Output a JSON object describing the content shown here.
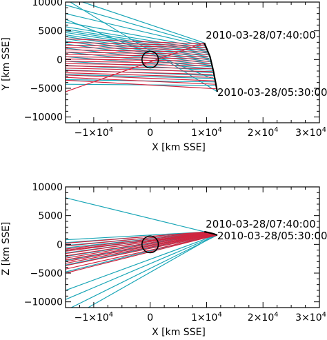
{
  "colors": {
    "cyan": "#1aa6b7",
    "red": "#d0243f",
    "axes": "#000000"
  },
  "chart_data": [
    {
      "type": "line",
      "xlabel": "X [km SSE]",
      "ylabel": "Y [km SSE]",
      "xlim": [
        -15000,
        30000
      ],
      "ylim": [
        -11000,
        10000
      ],
      "xticks": [
        -10000,
        0,
        10000,
        20000,
        30000
      ],
      "xtick_labels": [
        "-1x10^4",
        "0",
        "1x10^4",
        "2x10^4",
        "3x10^4"
      ],
      "yticks": [
        -10000,
        -5000,
        0,
        5000,
        10000
      ],
      "ytick_labels": [
        "-10000",
        "-5000",
        "0",
        "5000",
        "10000"
      ],
      "circle": {
        "cx": 0,
        "cy": 0,
        "r": 1450
      },
      "trajectory": {
        "x": [
          9600,
          10600,
          11200,
          11600,
          11900
        ],
        "y": [
          2900,
          500,
          -2000,
          -4000,
          -5600
        ]
      },
      "annotations": [
        {
          "text": "2010-03-28/07:40:00",
          "x": 9600,
          "y": 2900
        },
        {
          "text": "2010-03-28/05:30:00",
          "x": 11900,
          "y": -5600
        }
      ],
      "series": [
        {
          "color": "cyan",
          "segments": [
            [
              -15000,
              11000,
              9600,
              2900
            ],
            [
              -15000,
              9500,
              9700,
              2600
            ],
            [
              -15000,
              8000,
              9800,
              2300
            ],
            [
              -15000,
              6500,
              9900,
              2000
            ],
            [
              -15000,
              5700,
              10000,
              1700
            ],
            [
              -15000,
              5300,
              10100,
              1400
            ],
            [
              -15000,
              5000,
              10200,
              1100
            ],
            [
              -15000,
              4700,
              10300,
              800
            ],
            [
              -15000,
              4300,
              10400,
              500
            ],
            [
              -15000,
              4000,
              10500,
              200
            ],
            [
              -15000,
              3600,
              10600,
              -100
            ],
            [
              -15000,
              3200,
              10700,
              -400
            ],
            [
              -15000,
              2700,
              10800,
              -700
            ],
            [
              -15000,
              2000,
              10900,
              -1000
            ],
            [
              -15000,
              1300,
              11000,
              -1300
            ],
            [
              -15000,
              500,
              11100,
              -1600
            ],
            [
              -15000,
              -300,
              11200,
              -1900
            ],
            [
              -15000,
              -1000,
              11300,
              -2300
            ],
            [
              -15000,
              -1800,
              11400,
              -2800
            ],
            [
              -15000,
              -2600,
              11500,
              -3300
            ],
            [
              -15000,
              -3500,
              11600,
              -3900
            ],
            [
              -15000,
              -4300,
              11700,
              -4500
            ],
            [
              -15000,
              10500,
              11900,
              -5600
            ],
            [
              -15000,
              7000,
              11500,
              -3500
            ]
          ]
        },
        {
          "color": "red",
          "segments": [
            [
              -15000,
              3600,
              9700,
              2700
            ],
            [
              -15000,
              3000,
              9800,
              2400
            ],
            [
              -15000,
              2500,
              9900,
              2100
            ],
            [
              -15000,
              2100,
              10000,
              1700
            ],
            [
              -15000,
              1700,
              10100,
              1300
            ],
            [
              -15000,
              1300,
              10200,
              900
            ],
            [
              -15000,
              900,
              10300,
              500
            ],
            [
              -15000,
              500,
              10400,
              100
            ],
            [
              -15000,
              100,
              10500,
              -300
            ],
            [
              -15000,
              -300,
              10600,
              -700
            ],
            [
              -15000,
              -700,
              10800,
              -1100
            ],
            [
              -15000,
              -1100,
              10900,
              -1600
            ],
            [
              -15000,
              -1500,
              11000,
              -2100
            ],
            [
              -15000,
              -1900,
              11100,
              -2600
            ],
            [
              -15000,
              -2300,
              11200,
              -3100
            ],
            [
              -15000,
              -2700,
              11400,
              -3700
            ],
            [
              -15000,
              -3100,
              11600,
              -4300
            ],
            [
              -15000,
              -5600,
              9600,
              2900
            ],
            [
              -15000,
              -3600,
              11800,
              -5100
            ]
          ]
        }
      ]
    },
    {
      "type": "line",
      "xlabel": "X [km SSE]",
      "ylabel": "Z [km SSE]",
      "xlim": [
        -15000,
        30000
      ],
      "ylim": [
        -11000,
        10000
      ],
      "xticks": [
        -10000,
        0,
        10000,
        20000,
        30000
      ],
      "xtick_labels": [
        "-1x10^4",
        "0",
        "1x10^4",
        "2x10^4",
        "3x10^4"
      ],
      "yticks": [
        -10000,
        -5000,
        0,
        5000,
        10000
      ],
      "ytick_labels": [
        "-10000",
        "-5000",
        "0",
        "5000",
        "10000"
      ],
      "circle": {
        "cx": 0,
        "cy": 0,
        "r": 1450
      },
      "trajectory": {
        "x": [
          9600,
          10400,
          11200,
          11900
        ],
        "y": [
          2200,
          2050,
          1850,
          1600
        ]
      },
      "annotations": [
        {
          "text": "2010-03-28/07:40:00",
          "x": 9600,
          "y": 2200
        },
        {
          "text": "2010-03-28/05:30:00",
          "x": 11900,
          "y": 1600
        }
      ],
      "series": [
        {
          "color": "cyan",
          "segments": [
            [
              -15000,
              8100,
              9600,
              2200
            ],
            [
              -15000,
              800,
              9800,
              2150
            ],
            [
              -15000,
              300,
              10000,
              2100
            ],
            [
              -15000,
              -200,
              10200,
              2050
            ],
            [
              -15000,
              -600,
              10400,
              2000
            ],
            [
              -15000,
              -1000,
              10600,
              1950
            ],
            [
              -15000,
              -1500,
              10800,
              1900
            ],
            [
              -15000,
              -2100,
              11000,
              1850
            ],
            [
              -15000,
              -2800,
              11200,
              1800
            ],
            [
              -15000,
              -3600,
              11400,
              1750
            ],
            [
              -15000,
              -4800,
              11600,
              1700
            ],
            [
              -15000,
              -8000,
              11800,
              1650
            ],
            [
              -15000,
              -9600,
              11900,
              1600
            ],
            [
              -14000,
              -11000,
              11900,
              1600
            ],
            [
              -11000,
              -11000,
              11700,
              1650
            ]
          ]
        },
        {
          "color": "red",
          "segments": [
            [
              -15000,
              200,
              9700,
              2150
            ],
            [
              -15000,
              -300,
              9900,
              2100
            ],
            [
              -15000,
              -800,
              10100,
              2050
            ],
            [
              -15000,
              -1200,
              10300,
              2000
            ],
            [
              -15000,
              -1600,
              10500,
              1950
            ],
            [
              -15000,
              -2000,
              10700,
              1900
            ],
            [
              -15000,
              -2400,
              10900,
              1850
            ],
            [
              -15000,
              -2700,
              11100,
              1800
            ],
            [
              -15000,
              -3000,
              11300,
              1750
            ],
            [
              -15000,
              -3300,
              11500,
              1700
            ],
            [
              -15000,
              -3700,
              11700,
              1650
            ],
            [
              -15000,
              -4300,
              11900,
              1600
            ],
            [
              -15000,
              -5000,
              11800,
              1620
            ],
            [
              -15000,
              -1000,
              11000,
              1830
            ]
          ]
        }
      ]
    }
  ]
}
